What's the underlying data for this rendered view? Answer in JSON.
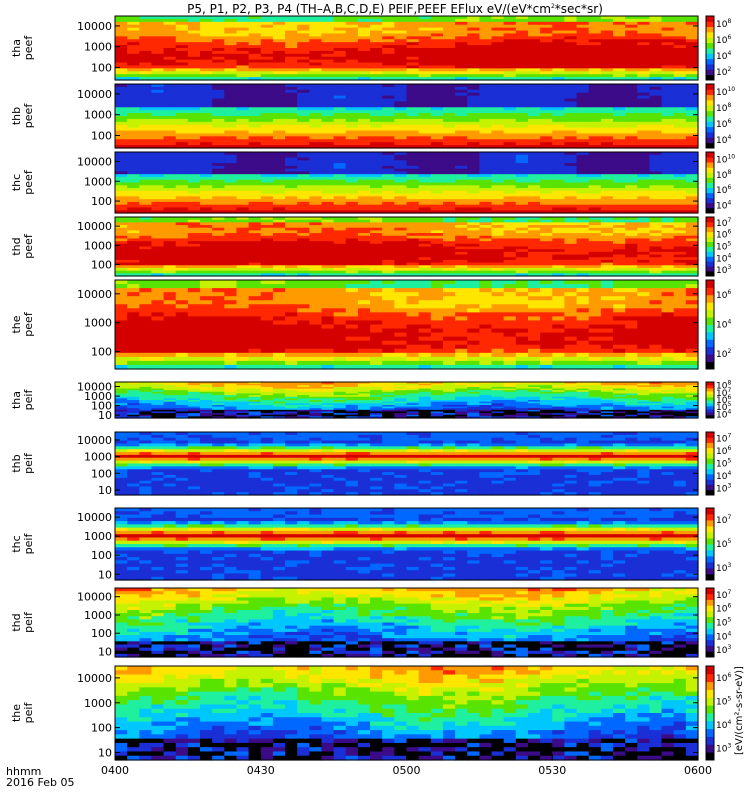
{
  "chart_data": {
    "type": "heatmap",
    "title": "P5, P1, P2, P3, P4 (TH-A,B,C,D,E) PEIF,PEEF EFlux eV/(eV*cm2*sec*sr)",
    "title_parts": {
      "pre": "P5, P1, P2, P3, P4 (TH–A,B,C,D,E) PEIF,PEEF EFlux eV/(eV*cm",
      "sup": "2",
      "post": "*sec*sr)"
    },
    "x_axis": {
      "label_line1": "hhmm",
      "label_line2": "2016 Feb 05",
      "ticks": [
        "0400",
        "0430",
        "0500",
        "0530",
        "0600"
      ],
      "range_minutes": [
        240,
        360
      ],
      "tick_minutes": [
        240,
        270,
        300,
        330,
        360
      ]
    },
    "y_scale": "log",
    "colorbar_unit_text": "[eV/(cm²-s-sr-eV)]",
    "colormap": [
      "#000000",
      "#3c0b88",
      "#1a2fd6",
      "#0068ff",
      "#00c8ff",
      "#1ff0a0",
      "#58e400",
      "#c4f200",
      "#ffe600",
      "#ff9a00",
      "#ff2800",
      "#d40000"
    ],
    "panels": [
      {
        "probe": "tha",
        "product": "peef",
        "ylabel": [
          "tha",
          "peef"
        ],
        "ytick_labels": [
          "10000",
          "1000",
          "100"
        ],
        "ytick_values": [
          10000,
          1000,
          100
        ],
        "ylim": [
          25,
          30000
        ],
        "cbar_exponents": [
          "2",
          "4",
          "6",
          "8"
        ],
        "pattern": "hot"
      },
      {
        "probe": "thb",
        "product": "peef",
        "ylabel": [
          "thb",
          "peef"
        ],
        "ytick_labels": [
          "10000",
          "1000",
          "100"
        ],
        "ytick_values": [
          10000,
          1000,
          100
        ],
        "ylim": [
          25,
          30000
        ],
        "cbar_exponents": [
          "4",
          "6",
          "8",
          "10"
        ],
        "pattern": "lobe"
      },
      {
        "probe": "thc",
        "product": "peef",
        "ylabel": [
          "thc",
          "peef"
        ],
        "ytick_labels": [
          "10000",
          "1000",
          "100"
        ],
        "ytick_values": [
          10000,
          1000,
          100
        ],
        "ylim": [
          25,
          30000
        ],
        "cbar_exponents": [
          "4",
          "6",
          "8",
          "10"
        ],
        "pattern": "lobe"
      },
      {
        "probe": "thd",
        "product": "peef",
        "ylabel": [
          "thd",
          "peef"
        ],
        "ytick_labels": [
          "10000",
          "1000",
          "100"
        ],
        "ytick_values": [
          10000,
          1000,
          100
        ],
        "ylim": [
          25,
          30000
        ],
        "cbar_exponents": [
          "3",
          "4",
          "5",
          "6",
          "7"
        ],
        "pattern": "hot"
      },
      {
        "probe": "the",
        "product": "peef",
        "ylabel": [
          "the",
          "peef"
        ],
        "ytick_labels": [
          "10000",
          "1000",
          "100"
        ],
        "ytick_values": [
          10000,
          1000,
          100
        ],
        "ylim": [
          25,
          30000
        ],
        "cbar_exponents": [
          "2",
          "4",
          "6"
        ],
        "pattern": "hot"
      },
      {
        "probe": "tha",
        "product": "peif",
        "ylabel": [
          "tha",
          "peif"
        ],
        "ytick_labels": [
          "10000",
          "1000",
          "100",
          "10"
        ],
        "ytick_values": [
          10000,
          1000,
          100,
          10
        ],
        "ylim": [
          5,
          30000
        ],
        "cbar_exponents": [
          "4",
          "5",
          "6",
          "7",
          "8"
        ],
        "pattern": "ion"
      },
      {
        "probe": "thb",
        "product": "peif",
        "ylabel": [
          "thb",
          "peif"
        ],
        "ytick_labels": [
          "10000",
          "1000",
          "100",
          "10"
        ],
        "ytick_values": [
          10000,
          1000,
          100,
          10
        ],
        "ylim": [
          5,
          30000
        ],
        "cbar_exponents": [
          "3",
          "4",
          "5",
          "6",
          "7"
        ],
        "pattern": "band"
      },
      {
        "probe": "thc",
        "product": "peif",
        "ylabel": [
          "thc",
          "peif"
        ],
        "ytick_labels": [
          "10000",
          "1000",
          "100",
          "10"
        ],
        "ytick_values": [
          10000,
          1000,
          100,
          10
        ],
        "ylim": [
          5,
          30000
        ],
        "cbar_exponents": [
          "3",
          "5",
          "7"
        ],
        "pattern": "band"
      },
      {
        "probe": "thd",
        "product": "peif",
        "ylabel": [
          "thd",
          "peif"
        ],
        "ytick_labels": [
          "10000",
          "1000",
          "100",
          "10"
        ],
        "ytick_values": [
          10000,
          1000,
          100,
          10
        ],
        "ylim": [
          5,
          30000
        ],
        "cbar_exponents": [
          "3",
          "4",
          "5",
          "6",
          "7"
        ],
        "pattern": "ion"
      },
      {
        "probe": "the",
        "product": "peif",
        "ylabel": [
          "the",
          "peif"
        ],
        "ytick_labels": [
          "10000",
          "1000",
          "100",
          "10"
        ],
        "ytick_values": [
          10000,
          1000,
          100,
          10
        ],
        "ylim": [
          5,
          30000
        ],
        "cbar_exponents": [
          "3",
          "4",
          "5",
          "6"
        ],
        "pattern": "ion"
      }
    ]
  }
}
